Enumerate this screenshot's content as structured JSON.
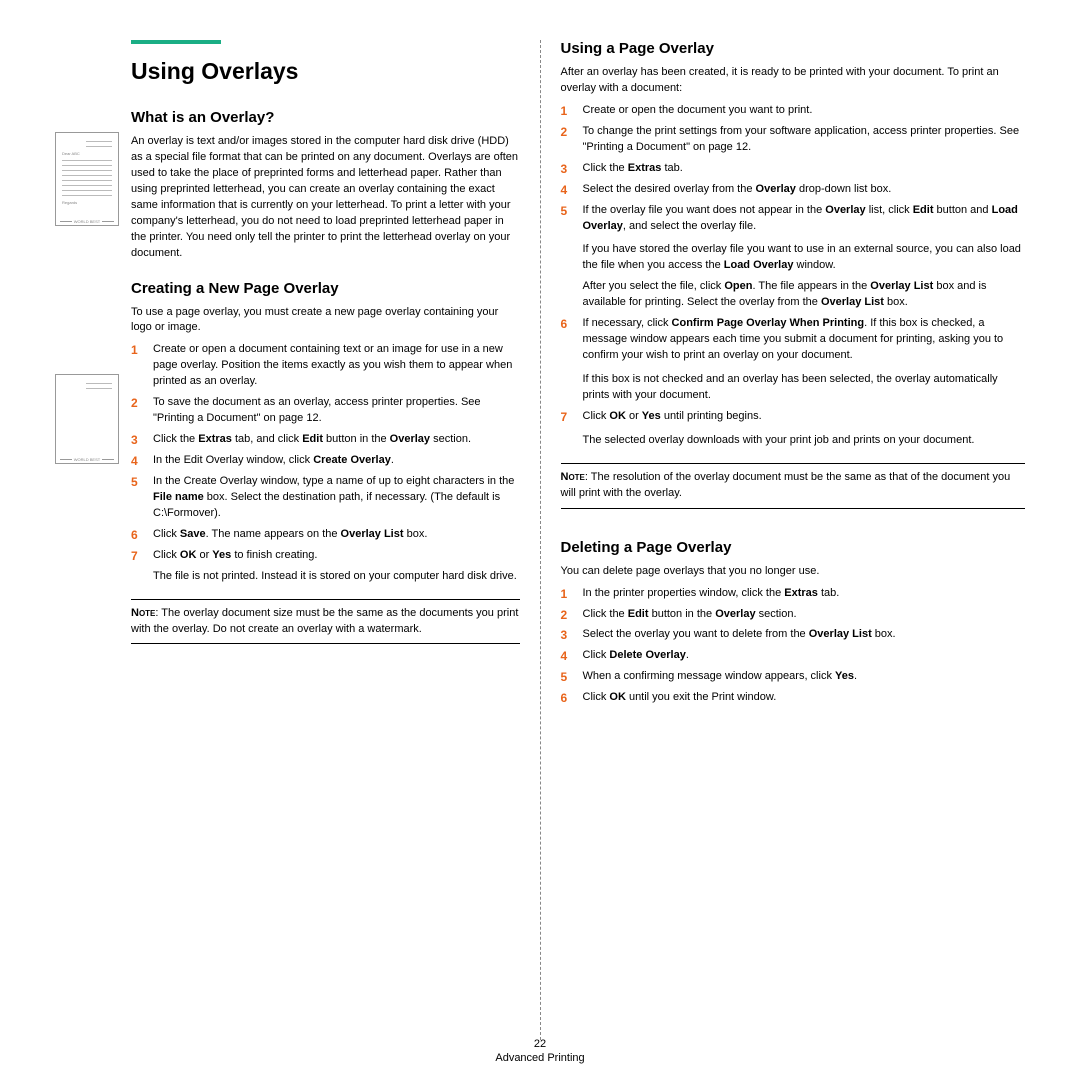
{
  "colors": {
    "accent": "#1aae85",
    "numbered": "#e8641b",
    "text": "#000000",
    "background": "#ffffff",
    "thumb_border": "#999999",
    "thumb_line": "#bbbbbb"
  },
  "left": {
    "title": "Using Overlays",
    "section1": {
      "heading": "What is an Overlay?",
      "body": "An overlay is text and/or images stored in the computer hard disk drive (HDD) as a special file format that can be printed on any document. Overlays are often used to take the place of preprinted forms and letterhead paper. Rather than using preprinted letterhead, you can create an overlay containing the exact same information that is currently on your letterhead. To print a letter with your company's letterhead, you do not need to load preprinted letterhead paper in the printer. You need only tell the printer to print the letterhead overlay on your document.",
      "thumb_dear": "Dear ABC",
      "thumb_regards": "Regards",
      "thumb_footer": "WORLD BEST"
    },
    "section2": {
      "heading": "Creating a New Page Overlay",
      "intro": "To use a page overlay, you must create a new page overlay containing your logo or image.",
      "steps": [
        "Create or open a document containing text or an image for use in a new page overlay. Position the items exactly as you wish them to appear when printed as an overlay.",
        "To save the document as an overlay, access printer properties. See \"Printing a Document\" on page 12.",
        "Click the <b>Extras</b> tab, and click <b>Edit</b> button in the <b>Overlay</b> section.",
        "In the Edit Overlay window, click <b>Create Overlay</b>.",
        "In the Create Overlay window, type a name of up to eight characters in the <b>File name</b> box. Select the destination path, if necessary. (The default is C:\\Formover).",
        "Click <b>Save</b>. The name appears on the <b>Overlay List</b> box.",
        "Click <b>OK</b> or <b>Yes</b> to finish creating."
      ],
      "after_steps": "The file is not printed. Instead it is stored on your computer hard disk drive.",
      "note_label": "Note",
      "note": ": The overlay document size must be the same as the documents you print with the overlay. Do not create an overlay with a watermark.",
      "thumb_footer": "WORLD BEST"
    }
  },
  "right": {
    "section1": {
      "heading": "Using a Page Overlay",
      "intro": "After an overlay has been created, it is ready to be printed with your document. To print an overlay with a document:",
      "steps": [
        "Create or open the document you want to print.",
        "To change the print settings from your software application, access printer properties. See \"Printing a Document\" on page 12.",
        "Click the <b>Extras</b> tab.",
        "Select the desired overlay from the <b>Overlay</b> drop-down list box.",
        "If the overlay file you want does not appear in the <b>Overlay</b> list, click <b>Edit</b> button and <b>Load Overlay</b>, and select the overlay file.",
        "If necessary, click <b>Confirm Page Overlay When Printing</b>. If this box is checked, a message window appears each time you submit a document for printing, asking you to confirm your wish to print an overlay on your document.",
        "Click <b>OK</b> or <b>Yes</b> until printing begins."
      ],
      "cont5a": "If you have stored the overlay file you want to use in an external source, you can also load the file when you access the <b>Load Overlay</b> window.",
      "cont5b": "After you select the file, click <b>Open</b>. The file appears in the <b>Overlay List</b> box and is available for printing. Select the overlay from the <b>Overlay List</b> box.",
      "cont6": "If this box is not checked and an overlay has been selected, the overlay automatically prints with your document.",
      "cont7": "The selected overlay downloads with your print job and prints on your document.",
      "note_label": "Note",
      "note": ": The resolution of the overlay document must be the same as that of the document you will print with the overlay."
    },
    "section2": {
      "heading": "Deleting a Page Overlay",
      "intro": "You can delete page overlays that you no longer use.",
      "steps": [
        "In the printer properties window, click the <b>Extras</b> tab.",
        "Click the <b>Edit</b> button in the <b>Overlay</b> section.",
        "Select the overlay you want to delete from the <b>Overlay List</b> box.",
        "Click <b>Delete Overlay</b>.",
        "When a confirming message window appears, click <b>Yes</b>.",
        "Click <b>OK</b> until you exit the Print window."
      ]
    }
  },
  "footer": {
    "page_num": "22",
    "section": "Advanced Printing"
  }
}
